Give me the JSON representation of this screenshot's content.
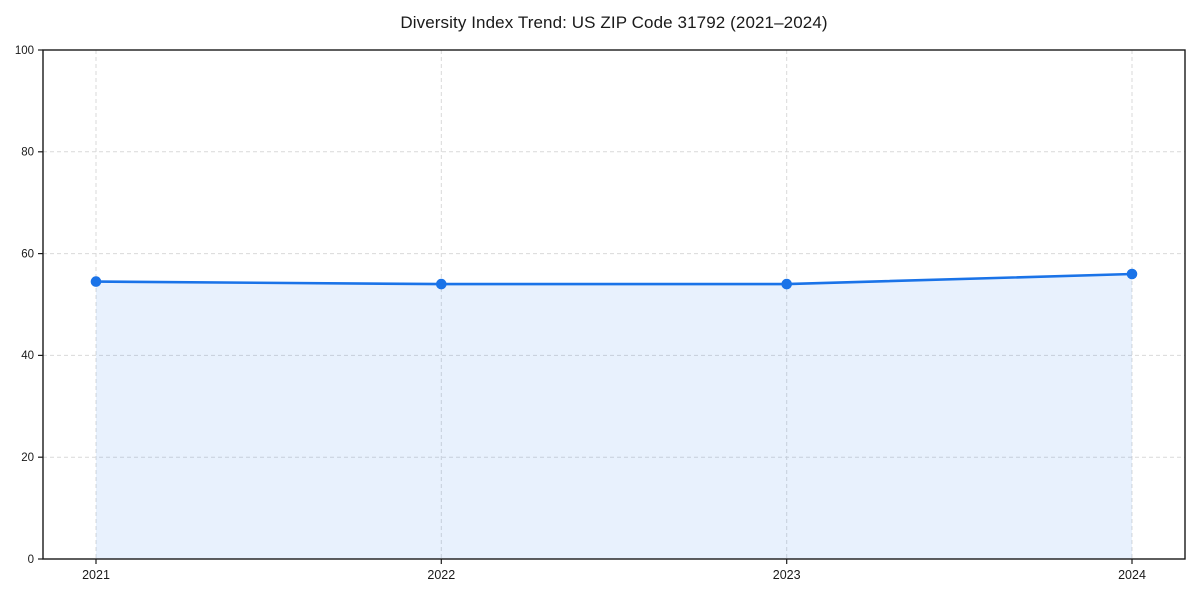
{
  "chart_data": {
    "type": "area",
    "title": "Diversity Index Trend: US ZIP Code 31792 (2021–2024)",
    "xlabel": "",
    "ylabel": "",
    "categories": [
      "2021",
      "2022",
      "2023",
      "2024"
    ],
    "series": [
      {
        "name": "Diversity Index",
        "values": [
          54.5,
          54,
          54,
          56
        ]
      }
    ],
    "ylim": [
      0,
      100
    ],
    "yticks": [
      0,
      20,
      40,
      60,
      80,
      100
    ],
    "grid": true,
    "grid_style": "dashed",
    "legend": false,
    "colors": {
      "line": "#1a73e8",
      "marker": "#1a73e8",
      "fill": "rgba(26,115,232,0.10)",
      "grid": "#d9d9d9",
      "axis": "#1a1a1a",
      "text": "#1a1a1a",
      "background": "#ffffff"
    }
  }
}
